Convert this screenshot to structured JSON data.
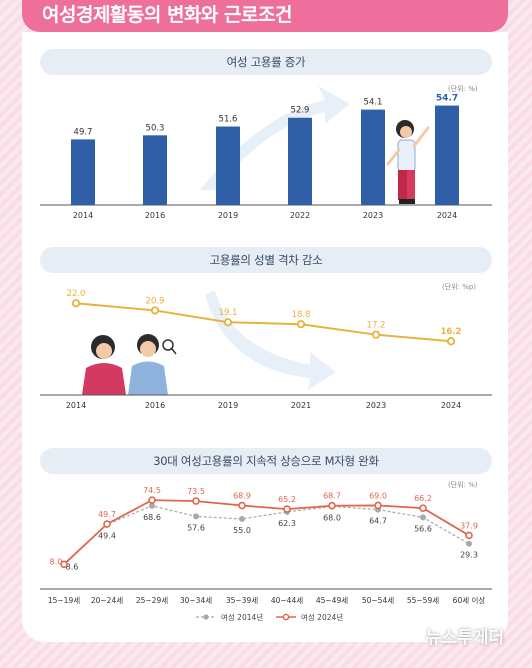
{
  "header": {
    "title": "여성경제활동의 변화와 근로조건"
  },
  "colors": {
    "accent_pink": "#ee6f9c",
    "bar_blue": "#2f5fa7",
    "line_gold": "#e8b23c",
    "line_red": "#e0664d",
    "line_gray": "#a9a9a9"
  },
  "chart_data": [
    {
      "type": "bar",
      "title": "여성 고용률 증가",
      "unit": "(단위: %)",
      "categories": [
        "2014",
        "2016",
        "2019",
        "2022",
        "2023",
        "2024"
      ],
      "values": [
        49.7,
        50.3,
        51.6,
        52.9,
        54.1,
        54.7
      ],
      "value_labels": [
        "49.7",
        "50.3",
        "51.6",
        "52.9",
        "54.1",
        "54.7"
      ],
      "ylim": [
        40,
        57
      ]
    },
    {
      "type": "line",
      "title": "고용률의 성별 격차 감소",
      "unit": "(단위: %p)",
      "categories": [
        "2014",
        "2016",
        "2019",
        "2021",
        "2023",
        "2024"
      ],
      "values": [
        22.0,
        20.9,
        19.1,
        18.8,
        17.2,
        16.2
      ],
      "value_labels": [
        "22.0",
        "20.9",
        "19.1",
        "18.8",
        "17.2",
        "16.2"
      ],
      "ylim": [
        8,
        26
      ]
    },
    {
      "type": "line",
      "title": "30대 여성고용률의 지속적 상승으로 M자형 완화",
      "unit": "(단위: %)",
      "categories": [
        "15~19세",
        "20~24세",
        "25~29세",
        "30~34세",
        "35~39세",
        "40~44세",
        "45~49세",
        "50~54세",
        "55~59세",
        "60세 이상"
      ],
      "series": [
        {
          "name": "여성 2014년",
          "values": [
            8.6,
            49.4,
            68.6,
            57.6,
            55.0,
            62.3,
            68.0,
            64.7,
            56.6,
            29.3
          ],
          "value_labels": [
            "8.6",
            "49.4",
            "68.6",
            "57.6",
            "55.0",
            "62.3",
            "68.0",
            "64.7",
            "56.6",
            "29.3"
          ]
        },
        {
          "name": "여성 2024년",
          "values": [
            8.0,
            49.7,
            74.5,
            73.5,
            68.9,
            65.2,
            68.7,
            69.0,
            66.2,
            37.9
          ],
          "value_labels": [
            "8.0",
            "49.7",
            "74.5",
            "73.5",
            "68.9",
            "65.2",
            "68.7",
            "69.0",
            "66.2",
            "37.9"
          ]
        }
      ],
      "ylim": [
        0,
        85
      ]
    }
  ],
  "watermark": "뉴스투게더"
}
